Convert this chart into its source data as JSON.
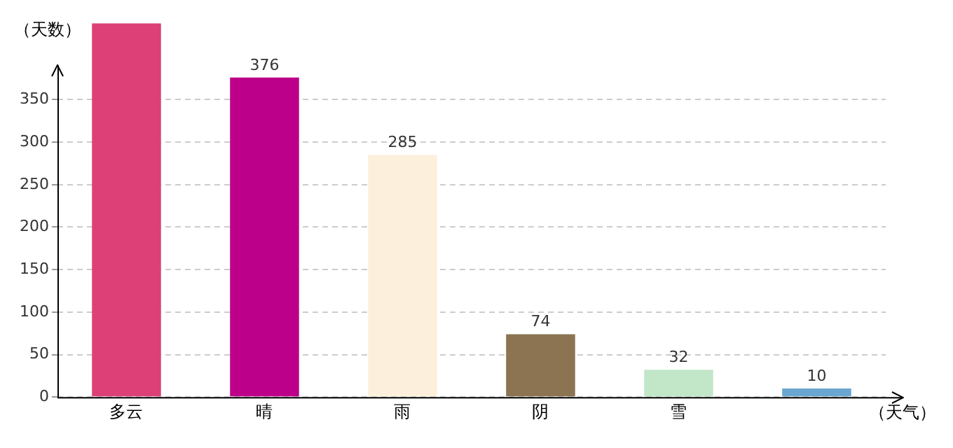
{
  "chart_data": {
    "type": "bar",
    "xlabel": "（天气）",
    "ylabel": "（天数）",
    "categories": [
      "多云",
      "晴",
      "雨",
      "阴",
      "雪",
      null
    ],
    "values": [
      440,
      376,
      285,
      74,
      32,
      10
    ],
    "colors": [
      "#dc4077",
      "#bc008a",
      "#fcf0dc",
      "#8c7452",
      "#c2e6c8",
      "#6aa6d0"
    ],
    "value_labels": [
      null,
      "376",
      "285",
      "74",
      "32",
      "10"
    ],
    "ylim": [
      0,
      440
    ],
    "yticks": [
      0,
      50,
      100,
      150,
      200,
      250,
      300,
      350
    ],
    "grid": "y",
    "legend": false
  }
}
